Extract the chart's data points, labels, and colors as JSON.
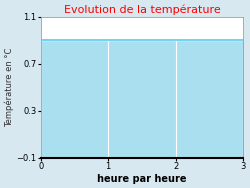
{
  "title": "Evolution de la température",
  "title_color": "#ff0000",
  "xlabel": "heure par heure",
  "ylabel": "Température en °C",
  "xlim": [
    0,
    3
  ],
  "ylim": [
    -0.1,
    1.1
  ],
  "xticks": [
    0,
    1,
    2,
    3
  ],
  "yticks": [
    -0.1,
    0.3,
    0.7,
    1.1
  ],
  "line_y": 0.9,
  "line_color": "#55ccee",
  "fill_color": "#aadff0",
  "background_color": "#d8e8f0",
  "plot_bg_color": "#aadff0",
  "grid_color": "#ffffff",
  "x_data": [
    0,
    3
  ],
  "y_data": [
    0.9,
    0.9
  ],
  "title_fontsize": 8,
  "label_fontsize": 6,
  "tick_fontsize": 6
}
